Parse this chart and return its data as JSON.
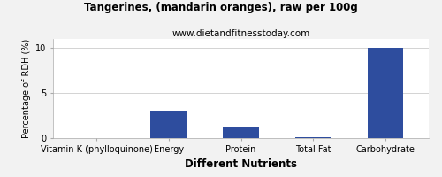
{
  "title": "Tangerines, (mandarin oranges), raw per 100g",
  "subtitle": "www.dietandfitnesstoday.com",
  "xlabel": "Different Nutrients",
  "ylabel": "Percentage of RDH (%)",
  "categories": [
    "Vitamin K (phylloquinone)",
    "Energy",
    "Protein",
    "Total Fat",
    "Carbohydrate"
  ],
  "values": [
    0.0,
    3.0,
    1.2,
    0.05,
    10.0
  ],
  "bar_color": "#2e4d9e",
  "ylim": [
    0,
    11
  ],
  "yticks": [
    0,
    5,
    10
  ],
  "bg_color": "#f2f2f2",
  "plot_bg_color": "#ffffff",
  "title_fontsize": 8.5,
  "subtitle_fontsize": 7.5,
  "xlabel_fontsize": 8.5,
  "ylabel_fontsize": 7,
  "tick_fontsize": 7
}
